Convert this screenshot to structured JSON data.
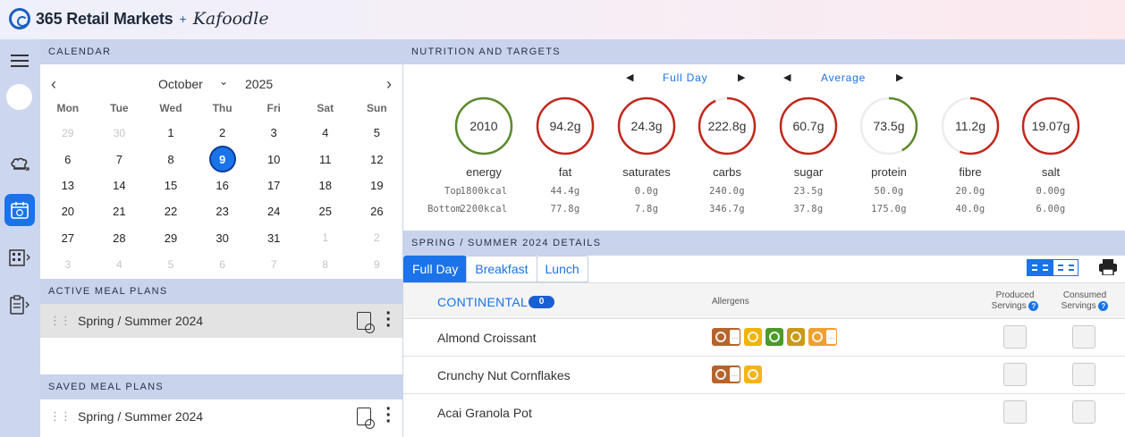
{
  "brand": {
    "name": "365 Retail Markets",
    "plus": "+",
    "partner": "Kafoodle"
  },
  "rail": {
    "icons": [
      "menu-icon",
      "avatar",
      "chef-hat-icon",
      "calendar-icon",
      "building-icon",
      "clipboard-icon"
    ]
  },
  "calendar": {
    "header": "CALENDAR",
    "month": "October",
    "year": "2025",
    "weekdays": [
      "Mon",
      "Tue",
      "Wed",
      "Thu",
      "Fri",
      "Sat",
      "Sun"
    ],
    "weeks": [
      [
        "29",
        "30",
        "1",
        "2",
        "3",
        "4",
        "5"
      ],
      [
        "6",
        "7",
        "8",
        "9",
        "10",
        "11",
        "12"
      ],
      [
        "13",
        "14",
        "15",
        "16",
        "17",
        "18",
        "19"
      ],
      [
        "20",
        "21",
        "22",
        "23",
        "24",
        "25",
        "26"
      ],
      [
        "27",
        "28",
        "29",
        "30",
        "31",
        "1",
        "2"
      ],
      [
        "3",
        "4",
        "5",
        "6",
        "7",
        "8",
        "9"
      ]
    ],
    "selected": "9"
  },
  "active_plans": {
    "header": "ACTIVE MEAL PLANS",
    "items": [
      "Spring / Summer 2024"
    ]
  },
  "saved_plans": {
    "header": "SAVED MEAL PLANS",
    "items": [
      "Spring / Summer 2024"
    ]
  },
  "nutrition": {
    "header": "NUTRITION AND TARGETS",
    "period": "Full Day",
    "mode": "Average",
    "top_label": "Top",
    "bottom_label": "Bottom",
    "items": [
      {
        "name": "energy",
        "value": "2010",
        "top": "1800kcal",
        "bottom": "2200kcal",
        "color": "#5a8a2a",
        "fill": 1.0
      },
      {
        "name": "fat",
        "value": "94.2g",
        "top": "44.4g",
        "bottom": "77.8g",
        "color": "#c0281c",
        "fill": 1.0
      },
      {
        "name": "saturates",
        "value": "24.3g",
        "top": "0.0g",
        "bottom": "7.8g",
        "color": "#c0281c",
        "fill": 1.0
      },
      {
        "name": "carbs",
        "value": "222.8g",
        "top": "240.0g",
        "bottom": "346.7g",
        "color": "#c0281c",
        "fill": 0.93
      },
      {
        "name": "sugar",
        "value": "60.7g",
        "top": "23.5g",
        "bottom": "37.8g",
        "color": "#c0281c",
        "fill": 1.0
      },
      {
        "name": "protein",
        "value": "73.5g",
        "top": "50.0g",
        "bottom": "175.0g",
        "color": "#5a8a2a",
        "fill": 0.42
      },
      {
        "name": "fibre",
        "value": "11.2g",
        "top": "20.0g",
        "bottom": "40.0g",
        "color": "#c0281c",
        "fill": 0.56
      },
      {
        "name": "salt",
        "value": "19.07g",
        "top": "0.00g",
        "bottom": "6.00g",
        "color": "#c0281c",
        "fill": 1.0
      }
    ]
  },
  "details": {
    "header": "SPRING / SUMMER 2024 DETAILS",
    "tabs": [
      "Full Day",
      "Breakfast",
      "Lunch"
    ],
    "category": "CONTINENTAL",
    "category_count": "0",
    "col_allergens": "Allergens",
    "col_produced": "Produced",
    "col_consumed": "Consumed",
    "col_servings": "Servings",
    "rows": [
      {
        "name": "Almond Croissant",
        "allergens": [
          "gluten",
          "egg",
          "celery",
          "mustard",
          "crustacean"
        ]
      },
      {
        "name": "Crunchy Nut Cornflakes",
        "allergens": [
          "gluten",
          "peanut"
        ]
      },
      {
        "name": "Acai Granola Pot",
        "allergens": []
      }
    ]
  },
  "colors": {
    "accent": "#1a73e8",
    "section": "#c9d3ec",
    "rail": "#ccd6ee",
    "green": "#5a8a2a",
    "red": "#c0281c"
  }
}
